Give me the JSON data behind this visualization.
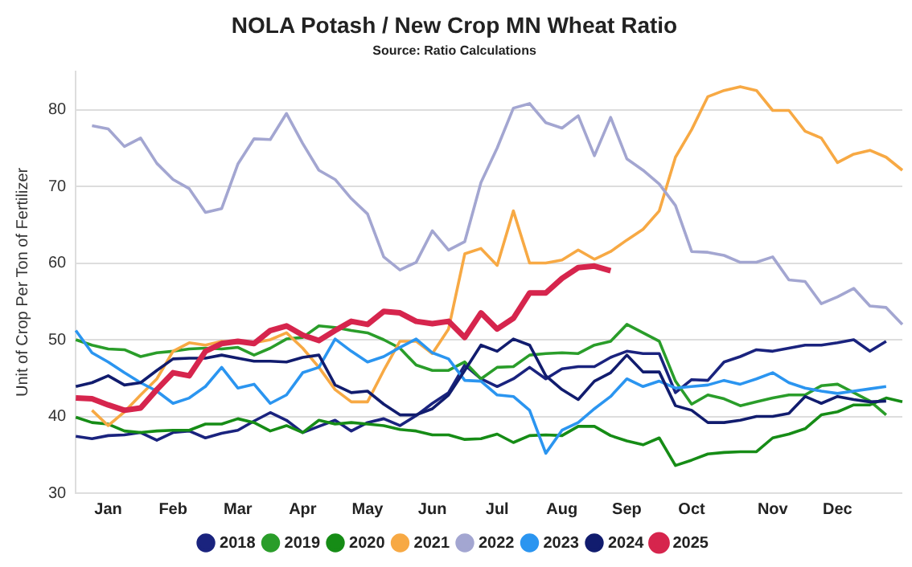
{
  "chart_data": {
    "type": "line",
    "title": "NOLA Potash / New Crop MN Wheat Ratio",
    "subtitle": "Source: Ratio Calculations",
    "ylabel": "Unit of Crop Per Ton of Fertilizer",
    "categories": [
      null,
      null,
      "Jan",
      null,
      null,
      null,
      "Feb",
      null,
      null,
      null,
      "Mar",
      null,
      null,
      null,
      "Apr",
      null,
      null,
      null,
      "May",
      null,
      null,
      null,
      "Jun",
      null,
      null,
      null,
      "Jul",
      null,
      null,
      null,
      "Aug",
      null,
      null,
      null,
      "Sep",
      null,
      null,
      null,
      "Oct",
      null,
      null,
      null,
      null,
      "Nov",
      null,
      null,
      null,
      "Dec",
      null,
      null,
      null,
      null
    ],
    "ylim": [
      30,
      85
    ],
    "yticks": [
      30,
      40,
      50,
      60,
      70,
      80
    ],
    "grid": "y",
    "legend": "bottom",
    "marker": "none",
    "series": [
      {
        "name": "2018",
        "color": "#1a237e",
        "values": [
          37.4,
          37.1,
          37.5,
          37.6,
          37.9,
          36.9,
          37.9,
          38.1,
          37.2,
          37.8,
          38.2,
          39.4,
          40.5,
          39.5,
          37.9,
          38.7,
          39.5,
          38.1,
          39.2,
          39.7,
          38.8,
          40.1,
          41.7,
          43.1,
          46.7,
          44.9,
          43.9,
          44.9,
          46.4,
          44.9,
          46.2,
          46.5,
          46.5,
          47.7,
          48.5,
          48.2,
          48.2,
          43.1,
          44.8,
          44.7,
          47.1,
          47.8,
          48.7,
          48.5,
          48.9,
          49.3,
          49.3,
          49.6,
          50,
          48.5,
          49.8,
          null
        ]
      },
      {
        "name": "2019",
        "color": "#2a9d2a",
        "values": [
          50,
          49.3,
          48.8,
          48.7,
          47.8,
          48.3,
          48.5,
          48.8,
          48.9,
          48.8,
          49,
          48,
          48.9,
          50.1,
          50.3,
          51.8,
          51.6,
          51.2,
          50.9,
          50,
          48.9,
          46.7,
          46,
          46,
          47.1,
          44.9,
          46.4,
          46.5,
          48,
          48.2,
          48.3,
          48.2,
          49.3,
          49.8,
          52,
          50.9,
          49.8,
          44.6,
          41.6,
          42.8,
          42.3,
          41.4,
          41.9,
          42.4,
          42.8,
          42.8,
          44,
          44.2,
          43.1,
          42,
          40.2,
          null
        ]
      },
      {
        "name": "2020",
        "color": "#168c16",
        "values": [
          39.9,
          39.2,
          39,
          38.1,
          37.9,
          38.1,
          38.2,
          38.2,
          39,
          39,
          39.7,
          39.2,
          38.1,
          38.8,
          37.9,
          39.5,
          39,
          39.2,
          39,
          38.8,
          38.3,
          38.1,
          37.6,
          37.6,
          37,
          37.1,
          37.7,
          36.6,
          37.5,
          37.6,
          37.5,
          38.7,
          38.7,
          37.5,
          36.8,
          36.3,
          37.2,
          33.6,
          34.3,
          35.1,
          35.3,
          35.4,
          35.4,
          37.2,
          37.7,
          38.4,
          40.2,
          40.6,
          41.5,
          41.5,
          42.4,
          41.9
        ]
      },
      {
        "name": "2021",
        "color": "#f7a944",
        "values": [
          null,
          40.8,
          38.8,
          40.6,
          42.8,
          44.9,
          48.5,
          49.6,
          49.3,
          49.8,
          49.6,
          49.6,
          50,
          50.9,
          48.9,
          46.4,
          43.5,
          41.9,
          41.9,
          46,
          49.8,
          49.8,
          48.2,
          51.4,
          61.2,
          61.9,
          59.7,
          66.8,
          60,
          60,
          60.4,
          61.7,
          60.5,
          61.5,
          63,
          64.4,
          66.8,
          73.8,
          77.4,
          81.7,
          82.5,
          83,
          82.5,
          79.9,
          79.9,
          77.2,
          76.3,
          73.1,
          74.2,
          74.7,
          73.8,
          72.1
        ]
      },
      {
        "name": "2022",
        "color": "#a3a6d1",
        "values": [
          null,
          77.9,
          77.5,
          75.2,
          76.3,
          73,
          70.9,
          69.7,
          66.6,
          67.1,
          72.9,
          76.2,
          76.1,
          79.5,
          75.6,
          72.1,
          70.9,
          68.4,
          66.4,
          60.8,
          59.1,
          60.1,
          64.2,
          61.7,
          62.8,
          70.5,
          75,
          80.2,
          80.8,
          78.3,
          77.6,
          79.2,
          74,
          79,
          73.6,
          72.1,
          70.3,
          67.5,
          61.5,
          61.4,
          61,
          60.1,
          60.1,
          60.8,
          57.8,
          57.6,
          54.7,
          55.6,
          56.7,
          54.4,
          54.2,
          52
        ]
      },
      {
        "name": "2023",
        "color": "#2b95f0",
        "values": [
          51.2,
          48.3,
          47.1,
          45.7,
          44.4,
          43.3,
          41.7,
          42.4,
          43.9,
          46.4,
          43.7,
          44.2,
          41.7,
          42.8,
          45.7,
          46.4,
          50.1,
          48.5,
          47.1,
          47.8,
          49,
          50.1,
          48.3,
          47.5,
          44.7,
          44.6,
          42.8,
          42.6,
          40.8,
          35.2,
          38.2,
          39.2,
          41,
          42.6,
          44.9,
          43.9,
          44.6,
          43.7,
          43.9,
          44.1,
          44.7,
          44.2,
          44.9,
          45.7,
          44.4,
          43.7,
          43.3,
          43,
          43.3,
          43.6,
          43.9,
          null
        ]
      },
      {
        "name": "2024",
        "color": "#111c6e",
        "values": [
          43.9,
          44.4,
          45.3,
          44.1,
          44.4,
          46,
          47.5,
          47.6,
          47.6,
          48,
          47.6,
          47.2,
          47.2,
          47.1,
          47.7,
          48,
          44.1,
          43.1,
          43.3,
          41.6,
          40.2,
          40.2,
          41,
          42.8,
          46,
          49.3,
          48.5,
          50.1,
          49.3,
          45.3,
          43.5,
          42.2,
          44.6,
          45.7,
          48,
          45.8,
          45.8,
          41.4,
          40.8,
          39.2,
          39.2,
          39.5,
          40,
          40,
          40.4,
          42.6,
          41.7,
          42.6,
          42.2,
          41.9,
          42,
          null
        ]
      },
      {
        "name": "2025",
        "color": "#d6254d",
        "values": [
          42.4,
          42.3,
          41.5,
          40.8,
          41.1,
          43.5,
          45.7,
          45.3,
          48.5,
          49.5,
          49.8,
          49.5,
          51.2,
          51.8,
          50.6,
          49.9,
          51.2,
          52.4,
          52,
          53.7,
          53.5,
          52.4,
          52.1,
          52.4,
          50.3,
          53.5,
          51.4,
          52.8,
          56.1,
          56.1,
          58,
          59.4,
          59.6,
          59,
          null,
          null,
          null,
          null,
          null,
          null,
          null,
          null,
          null,
          null,
          null,
          null,
          null,
          null,
          null,
          null,
          null,
          null
        ]
      }
    ]
  }
}
